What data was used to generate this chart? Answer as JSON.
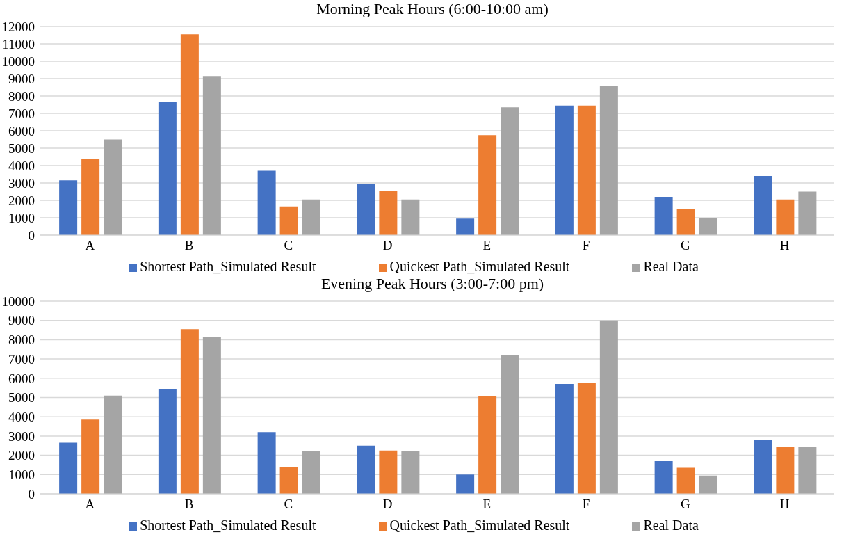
{
  "chart_data": [
    {
      "type": "bar",
      "title": "Morning Peak Hours (6:00-10:00 am)",
      "categories": [
        "A",
        "B",
        "C",
        "D",
        "E",
        "F",
        "G",
        "H"
      ],
      "series": [
        {
          "name": "Shortest Path_Simulated Result",
          "color": "#4472c4",
          "values": [
            3150,
            7650,
            3700,
            2950,
            950,
            7450,
            2200,
            3400
          ]
        },
        {
          "name": "Quickest Path_Simulated Result",
          "color": "#ed7d31",
          "values": [
            4400,
            11550,
            1650,
            2550,
            5750,
            7450,
            1500,
            2050
          ]
        },
        {
          "name": "Real Data",
          "color": "#a5a5a5",
          "values": [
            5500,
            9150,
            2050,
            2050,
            7350,
            8600,
            1000,
            2500
          ]
        }
      ],
      "ylim": [
        0,
        12000
      ],
      "yticks": [
        0,
        1000,
        2000,
        3000,
        4000,
        5000,
        6000,
        7000,
        8000,
        9000,
        10000,
        11000,
        12000
      ],
      "grid": "y",
      "legend": "bottom"
    },
    {
      "type": "bar",
      "title": "Evening Peak Hours (3:00-7:00 pm)",
      "categories": [
        "A",
        "B",
        "C",
        "D",
        "E",
        "F",
        "G",
        "H"
      ],
      "series": [
        {
          "name": "Shortest Path_Simulated Result",
          "color": "#4472c4",
          "values": [
            2650,
            5450,
            3200,
            2500,
            1000,
            5700,
            1700,
            2800
          ]
        },
        {
          "name": "Quickest Path_Simulated Result",
          "color": "#ed7d31",
          "values": [
            3850,
            8550,
            1400,
            2250,
            5050,
            5750,
            1350,
            2450
          ]
        },
        {
          "name": "Real Data",
          "color": "#a5a5a5",
          "values": [
            5100,
            8150,
            2200,
            2200,
            7200,
            9000,
            950,
            2450
          ]
        }
      ],
      "ylim": [
        0,
        10000
      ],
      "yticks": [
        0,
        1000,
        2000,
        3000,
        4000,
        5000,
        6000,
        7000,
        8000,
        9000,
        10000
      ],
      "grid": "y",
      "legend": "bottom"
    }
  ]
}
